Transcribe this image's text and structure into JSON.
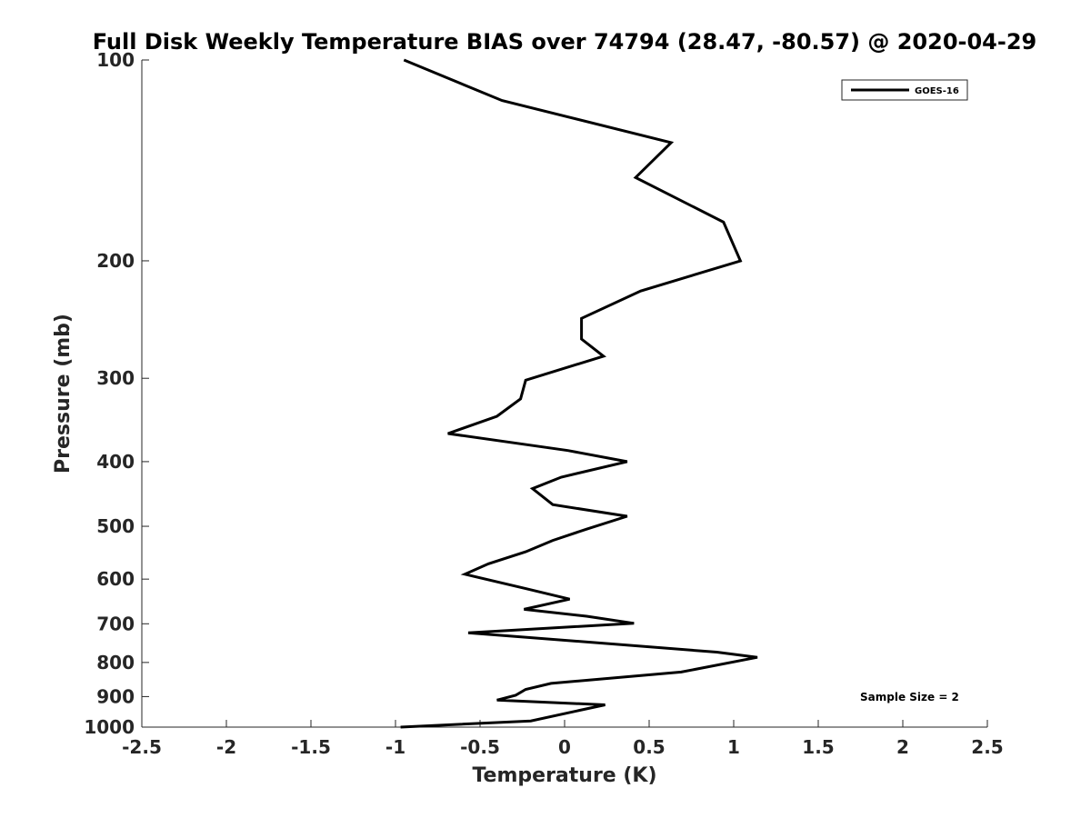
{
  "chart_data": {
    "type": "line",
    "title": "Full Disk Weekly Temperature BIAS over 74794 (28.47, -80.57) @ 2020-04-29",
    "xlabel": "Temperature (K)",
    "ylabel": "Pressure (mb)",
    "xlim": [
      -2.5,
      2.5
    ],
    "ylim": [
      1000,
      100
    ],
    "yscale": "log",
    "xticks": [
      "-2.5",
      "-2",
      "-1.5",
      "-1",
      "-0.5",
      "0",
      "0.5",
      "1",
      "1.5",
      "2",
      "2.5"
    ],
    "yticks": [
      "100",
      "200",
      "300",
      "400",
      "500",
      "600",
      "700",
      "800",
      "900",
      "1000"
    ],
    "legend_position": "top-right",
    "annotation": "Sample Size = 2",
    "series": [
      {
        "name": "GOES-16",
        "color": "#000000",
        "points": [
          [
            -0.95,
            100
          ],
          [
            -0.37,
            115
          ],
          [
            0.63,
            133
          ],
          [
            0.42,
            150
          ],
          [
            0.94,
            175
          ],
          [
            1.04,
            200
          ],
          [
            0.45,
            222
          ],
          [
            0.1,
            244
          ],
          [
            0.1,
            262
          ],
          [
            0.23,
            278
          ],
          [
            -0.23,
            302
          ],
          [
            -0.26,
            322
          ],
          [
            -0.4,
            342
          ],
          [
            -0.69,
            363
          ],
          [
            0.02,
            385
          ],
          [
            0.37,
            400
          ],
          [
            -0.02,
            422
          ],
          [
            -0.19,
            439
          ],
          [
            -0.07,
            464
          ],
          [
            0.37,
            483
          ],
          [
            0.13,
            505
          ],
          [
            -0.07,
            525
          ],
          [
            -0.23,
            546
          ],
          [
            -0.45,
            569
          ],
          [
            -0.59,
            590
          ],
          [
            -0.23,
            620
          ],
          [
            0.03,
            643
          ],
          [
            -0.24,
            666
          ],
          [
            0.13,
            682
          ],
          [
            0.41,
            699
          ],
          [
            -0.57,
            722
          ],
          [
            0.9,
            772
          ],
          [
            1.14,
            786
          ],
          [
            0.69,
            827
          ],
          [
            -0.08,
            860
          ],
          [
            -0.23,
            878
          ],
          [
            -0.29,
            896
          ],
          [
            -0.4,
            911
          ],
          [
            0.24,
            926
          ],
          [
            0.07,
            946
          ],
          [
            -0.2,
            979
          ],
          [
            -0.97,
            1000
          ]
        ]
      }
    ]
  }
}
